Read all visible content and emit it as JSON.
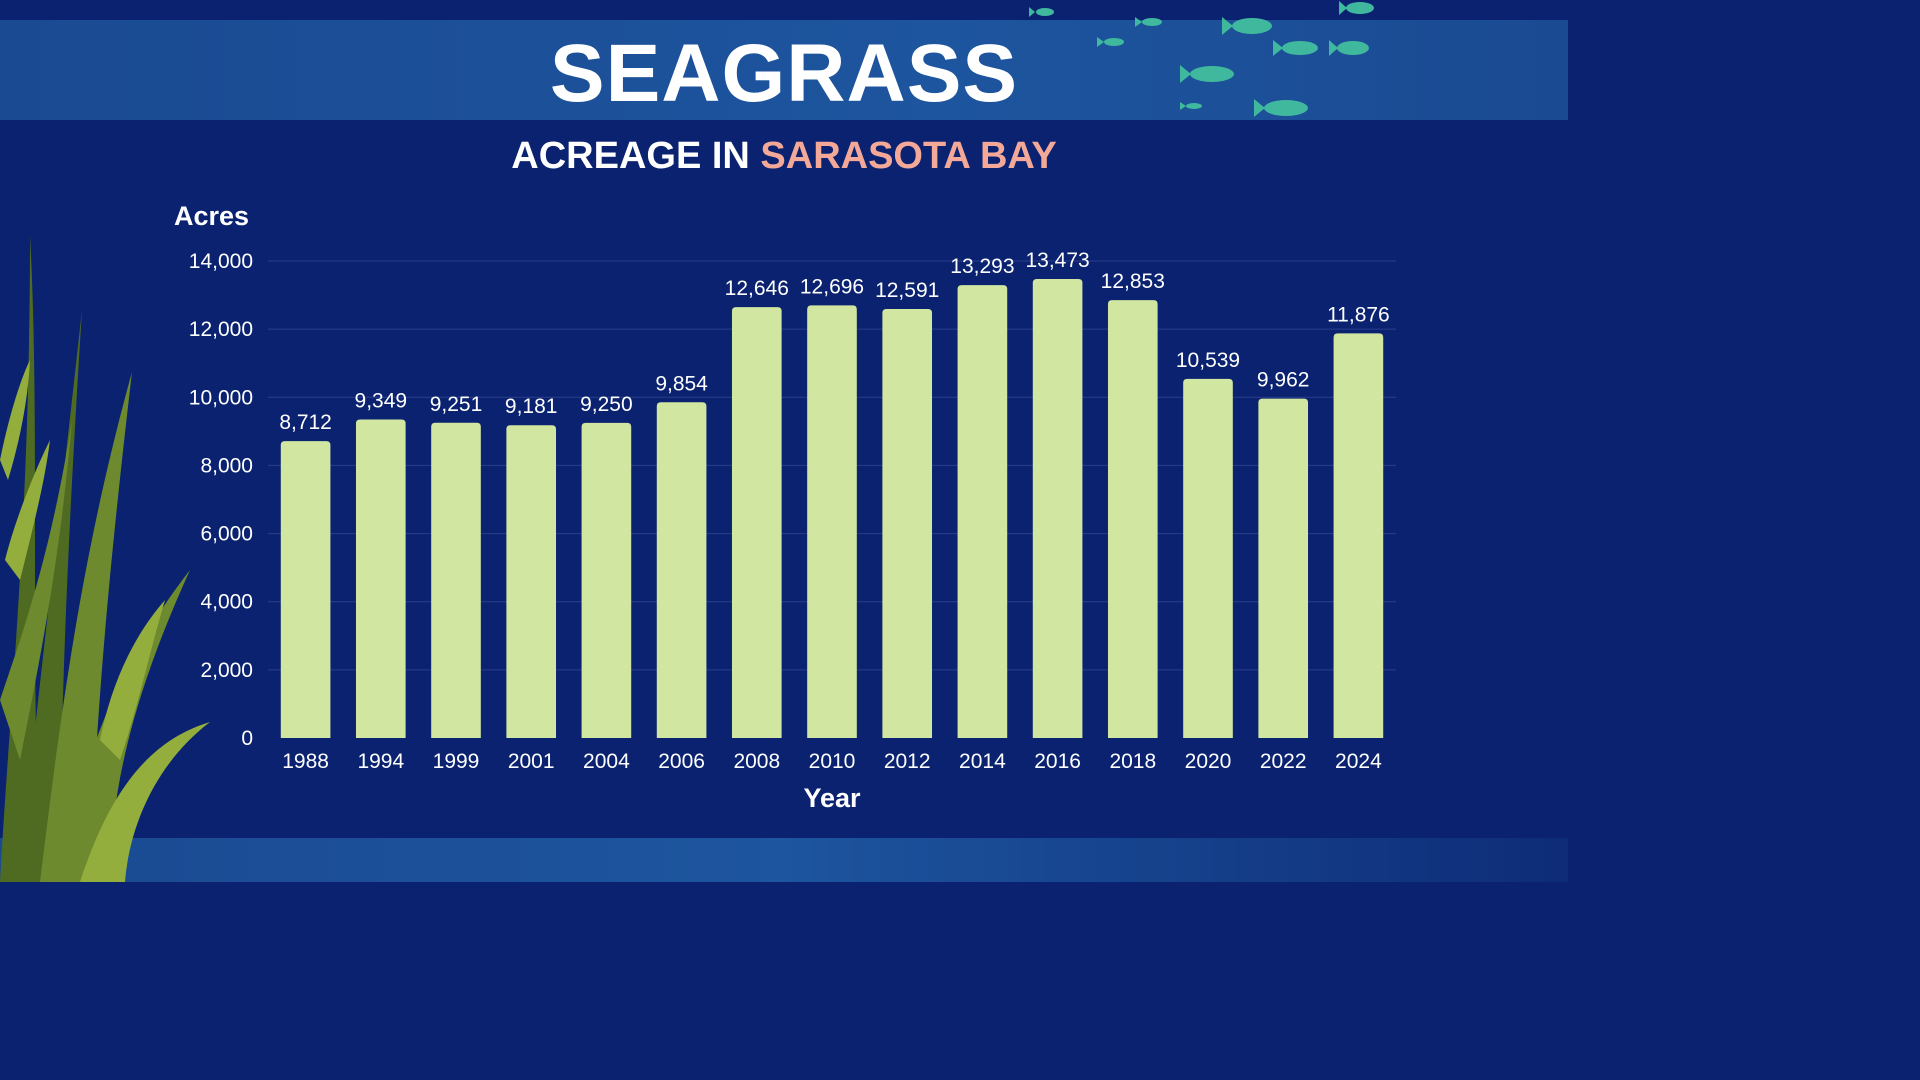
{
  "header": {
    "title": "SEAGRASS",
    "subtitle_prefix": "ACREAGE IN ",
    "subtitle_accent": "SARASOTA BAY"
  },
  "colors": {
    "background": "#0a2270",
    "banner": "#1d559e",
    "bar": "#d1e6a0",
    "accent": "#f4a898",
    "fish": "#3fb89e",
    "seaweed": "#6e8a2e"
  },
  "chart_data": {
    "type": "bar",
    "title": "",
    "xlabel": "Year",
    "ylabel": "Acres",
    "ylim": [
      0,
      14000
    ],
    "yticks": [
      0,
      2000,
      4000,
      6000,
      8000,
      10000,
      12000,
      14000
    ],
    "ytick_labels": [
      "0",
      "2,000",
      "4,000",
      "6,000",
      "8,000",
      "10,000",
      "12,000",
      "14,000"
    ],
    "grid": true,
    "categories": [
      "1988",
      "1994",
      "1999",
      "2001",
      "2004",
      "2006",
      "2008",
      "2010",
      "2012",
      "2014",
      "2016",
      "2018",
      "2020",
      "2022",
      "2024"
    ],
    "values": [
      8712,
      9349,
      9251,
      9181,
      9250,
      9854,
      12646,
      12696,
      12591,
      13293,
      13473,
      12853,
      10539,
      9962,
      11876
    ],
    "value_labels": [
      "8,712",
      "9,349",
      "9,251",
      "9,181",
      "9,250",
      "9,854",
      "12,646",
      "12,696",
      "12,591",
      "13,293",
      "13,473",
      "12,853",
      "10,539",
      "9,962",
      "11,876"
    ]
  }
}
